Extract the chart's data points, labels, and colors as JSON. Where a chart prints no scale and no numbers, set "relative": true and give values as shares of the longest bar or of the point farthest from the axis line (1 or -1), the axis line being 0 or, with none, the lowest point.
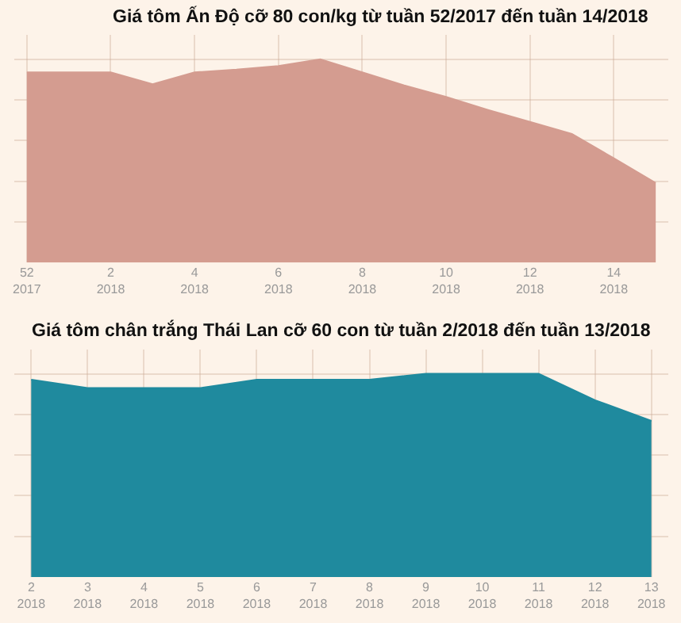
{
  "chart_data": [
    {
      "type": "area",
      "title": "Giá tôm Ấn Độ cỡ 80 con/kg từ tuần 52/2017 đến tuần 14/2018",
      "relative": true,
      "grid": true,
      "categories": [
        "52\n2017",
        null,
        "2\n2018",
        null,
        "4\n2018",
        null,
        "6\n2018",
        null,
        "8\n2018",
        null,
        "10\n2018",
        null,
        "12\n2018",
        null,
        "14\n2018",
        null
      ],
      "series": [
        {
          "color": "#d49c90",
          "values": [
            0.936,
            0.936,
            0.936,
            0.877,
            0.936,
            0.949,
            0.967,
            1,
            0.936,
            0.872,
            0.815,
            0.751,
            0.692,
            0.633,
            0.513,
            0.392
          ]
        }
      ]
    },
    {
      "type": "area",
      "title": "Giá tôm chân trắng Thái Lan cỡ 60 con từ tuần 2/2018 đến tuần 13/2018",
      "relative": true,
      "grid": true,
      "categories": [
        "2\n2018",
        "3\n2018",
        "4\n2018",
        "5\n2018",
        "6\n2018",
        "7\n2018",
        "8\n2018",
        "9\n2018",
        "10\n2018",
        "11\n2018",
        "12\n2018",
        "13\n2018"
      ],
      "series": [
        {
          "color": "#1f8a9e",
          "values": [
            0.971,
            0.93,
            0.93,
            0.93,
            0.971,
            0.971,
            0.971,
            1,
            1,
            1,
            0.87,
            0.768
          ]
        }
      ]
    }
  ]
}
